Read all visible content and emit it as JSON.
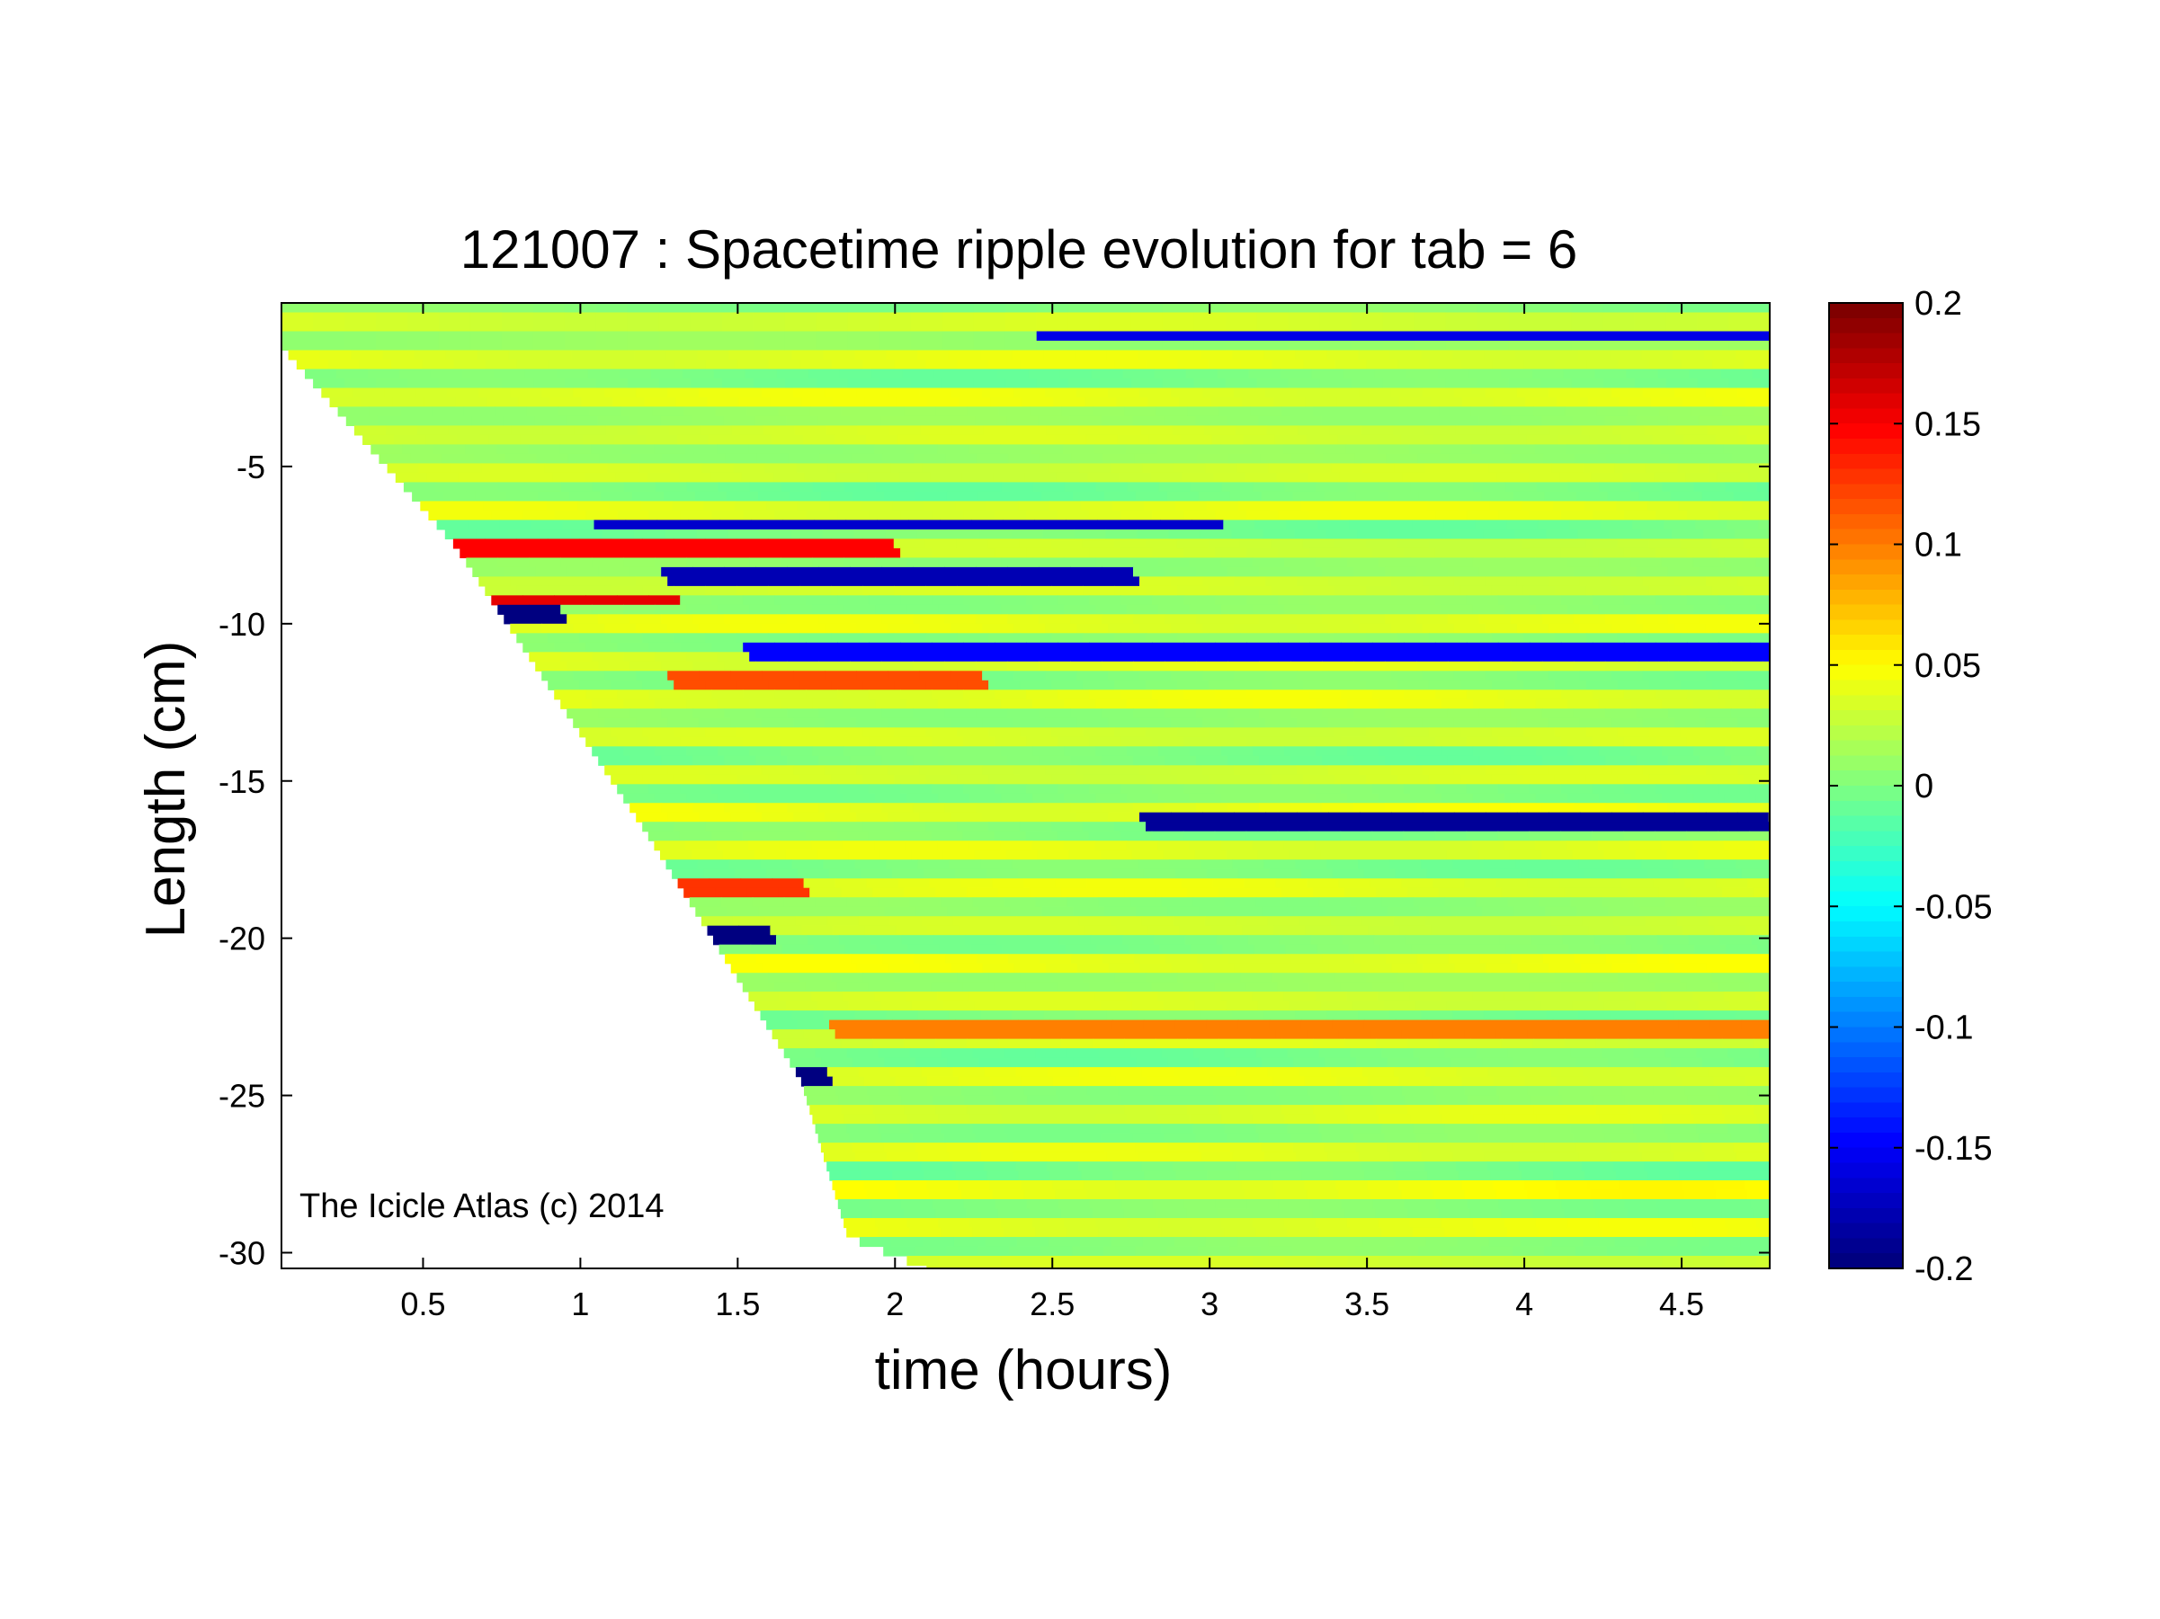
{
  "chart_data": {
    "type": "heatmap",
    "title": "121007 : Spacetime ripple evolution for tab = 6",
    "xlabel": "time (hours)",
    "ylabel": "Length (cm)",
    "xlim": [
      0.05,
      4.78
    ],
    "ylim": [
      -30.5,
      0.2
    ],
    "xticks": [
      0.5,
      1,
      1.5,
      2,
      2.5,
      3,
      3.5,
      4,
      4.5
    ],
    "xtick_labels": [
      "0.5",
      "1",
      "1.5",
      "2",
      "2.5",
      "3",
      "3.5",
      "4",
      "4.5"
    ],
    "yticks": [
      -5,
      -10,
      -15,
      -20,
      -25,
      -30
    ],
    "ytick_labels": [
      "-5",
      "-10",
      "-15",
      "-20",
      "-25",
      "-30"
    ],
    "colorbar": {
      "colormap": "jet",
      "clim": [
        -0.2,
        0.2
      ],
      "ticks": [
        0.2,
        0.15,
        0.1,
        0.05,
        0,
        -0.05,
        -0.1,
        -0.15,
        -0.2
      ],
      "tick_labels": [
        "0.2",
        "0.15",
        "0.1",
        "0.05",
        "0",
        "-0.05",
        "-0.1",
        "-0.15",
        "-0.2"
      ]
    },
    "data_boundary": {
      "description": "data begins at time t(L) for length L; region left of the boundary is empty",
      "points": [
        [
          0.05,
          -1.2
        ],
        [
          0.6,
          -7.5
        ],
        [
          1.2,
          -16.5
        ],
        [
          1.7,
          -24.5
        ],
        [
          1.85,
          -29.5
        ],
        [
          2.1,
          -30.5
        ]
      ]
    },
    "annotation": "The Icicle Atlas (c) 2014",
    "grid": false,
    "legend": "none"
  }
}
